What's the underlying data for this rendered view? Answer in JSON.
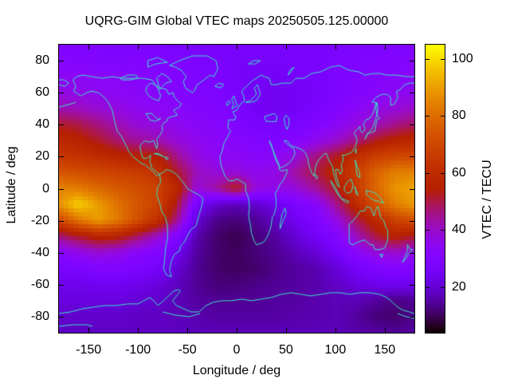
{
  "title": "UQRG-GIM Global VTEC maps 20250505.125.00000",
  "axes": {
    "x": {
      "label": "Longitude / deg",
      "range": [
        -180,
        180
      ],
      "ticks": [
        -150,
        -100,
        -50,
        0,
        50,
        100,
        150
      ]
    },
    "y": {
      "label": "Latitude / deg",
      "range": [
        -90,
        90
      ],
      "ticks": [
        80,
        60,
        40,
        20,
        0,
        -20,
        -40,
        -60,
        -80
      ]
    },
    "colorbar": {
      "label": "VTEC / TECU",
      "range": [
        4,
        105
      ],
      "ticks": [
        20,
        40,
        60,
        80,
        100
      ]
    }
  },
  "colors": {
    "background": "#ffffff",
    "text": "#000000",
    "plot_border": "#000000",
    "coastline": "#38e6c6",
    "palette_model": "gnuplot pm3d black-violet-red-orange-yellow"
  },
  "chart_data": {
    "type": "heatmap",
    "title": "UQRG-GIM Global VTEC maps 20250505.125.00000",
    "xlabel": "Longitude / deg",
    "ylabel": "Latitude / deg",
    "cblabel": "VTEC / TECU",
    "xlim": [
      -180,
      180
    ],
    "ylim": [
      -90,
      90
    ],
    "cblim": [
      4,
      105
    ],
    "legend_position": "right-colorbar",
    "grid": false,
    "cell_size_deg": {
      "lon": 5,
      "lat": 2.5
    },
    "grid_lons": [
      -180,
      -160,
      -140,
      -120,
      -100,
      -80,
      -60,
      -40,
      -20,
      0,
      20,
      40,
      60,
      80,
      100,
      120,
      140,
      160,
      180
    ],
    "grid_lats": [
      90,
      80,
      70,
      60,
      50,
      40,
      30,
      20,
      10,
      0,
      -10,
      -20,
      -30,
      -40,
      -50,
      -60,
      -70,
      -80,
      -90
    ],
    "values_tecu": [
      [
        29,
        29,
        29,
        28,
        28,
        28,
        27,
        27,
        27,
        27,
        27,
        27,
        27,
        27,
        28,
        28,
        28,
        29,
        29
      ],
      [
        31,
        31,
        30,
        30,
        30,
        29,
        29,
        28,
        27,
        26,
        26,
        26,
        27,
        27,
        28,
        29,
        30,
        30,
        31
      ],
      [
        34,
        34,
        33,
        33,
        32,
        31,
        30,
        29,
        28,
        26,
        25,
        25,
        26,
        27,
        28,
        30,
        31,
        32,
        33
      ],
      [
        37,
        36,
        35,
        34,
        33,
        32,
        31,
        30,
        29,
        27,
        25,
        24,
        25,
        26,
        28,
        30,
        32,
        34,
        35
      ],
      [
        42,
        41,
        39,
        37,
        35,
        34,
        33,
        31,
        30,
        28,
        25,
        24,
        25,
        27,
        30,
        33,
        36,
        38,
        40
      ],
      [
        52,
        50,
        46,
        42,
        38,
        37,
        35,
        33,
        32,
        30,
        27,
        26,
        27,
        30,
        33,
        37,
        41,
        45,
        48
      ],
      [
        58,
        56,
        52,
        47,
        44,
        42,
        38,
        35,
        33,
        32,
        30,
        29,
        31,
        35,
        39,
        45,
        52,
        56,
        58
      ],
      [
        64,
        63,
        60,
        57,
        55,
        55,
        45,
        37,
        34,
        34,
        32,
        33,
        38,
        46,
        52,
        60,
        67,
        70,
        70
      ],
      [
        74,
        72,
        70,
        68,
        66,
        62,
        52,
        41,
        38,
        38,
        35,
        37,
        44,
        50,
        57,
        66,
        77,
        84,
        85
      ],
      [
        85,
        83,
        79,
        75,
        72,
        68,
        58,
        38,
        44,
        54,
        38,
        36,
        38,
        44,
        52,
        64,
        78,
        88,
        91
      ],
      [
        88,
        99,
        90,
        81,
        74,
        68,
        52,
        26,
        19,
        17,
        19,
        23,
        28,
        32,
        44,
        58,
        72,
        84,
        89
      ],
      [
        70,
        82,
        90,
        83,
        72,
        62,
        45,
        20,
        13,
        12,
        14,
        18,
        24,
        28,
        36,
        48,
        58,
        68,
        72
      ],
      [
        46,
        52,
        57,
        56,
        48,
        40,
        30,
        16,
        11,
        9,
        12,
        15,
        20,
        25,
        30,
        40,
        50,
        56,
        52
      ],
      [
        33,
        36,
        39,
        37,
        33,
        30,
        24,
        15,
        11,
        10,
        12,
        14,
        17,
        20,
        25,
        32,
        38,
        40,
        37
      ],
      [
        27,
        28,
        30,
        30,
        28,
        26,
        20,
        14,
        11,
        10,
        11,
        13,
        15,
        16,
        20,
        25,
        29,
        31,
        29
      ],
      [
        23,
        23,
        24,
        24,
        23,
        21,
        18,
        14,
        12,
        12,
        13,
        14,
        15,
        16,
        18,
        21,
        23,
        24,
        23
      ],
      [
        21,
        21,
        21,
        21,
        20,
        19,
        17,
        15,
        14,
        14,
        14,
        15,
        15,
        16,
        17,
        17,
        15,
        13,
        14
      ],
      [
        19,
        19,
        19,
        19,
        18,
        18,
        17,
        16,
        15,
        15,
        15,
        15,
        16,
        16,
        17,
        15,
        12,
        11,
        13
      ],
      [
        18,
        18,
        18,
        18,
        18,
        18,
        18,
        17,
        17,
        17,
        17,
        17,
        17,
        17,
        17,
        16,
        15,
        14,
        15
      ]
    ]
  }
}
